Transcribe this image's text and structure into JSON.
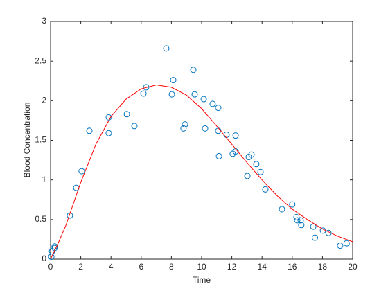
{
  "chart_data": {
    "type": "scatter",
    "xlabel": "Time",
    "ylabel": "Blood Concentration",
    "xlim": [
      0,
      20
    ],
    "ylim": [
      0,
      3
    ],
    "xticks": [
      0,
      2,
      4,
      6,
      8,
      10,
      12,
      14,
      16,
      18,
      20
    ],
    "yticks": [
      0,
      0.5,
      1,
      1.5,
      2,
      2.5,
      3
    ],
    "series": [
      {
        "type": "scatter",
        "color": "#0072bd",
        "x": [
          0.05,
          0.1,
          0.27,
          0.27,
          1.28,
          1.7,
          2.06,
          2.57,
          3.85,
          3.85,
          5.05,
          5.55,
          6.15,
          6.33,
          7.66,
          8.03,
          8.12,
          8.8,
          8.9,
          9.45,
          9.54,
          10.14,
          10.23,
          10.73,
          11.1,
          11.1,
          11.15,
          11.65,
          12.06,
          12.25,
          12.25,
          13.03,
          13.12,
          13.3,
          13.62,
          13.9,
          14.22,
          15.32,
          16.0,
          16.28,
          16.33,
          16.56,
          16.6,
          17.39,
          17.5,
          18.03,
          18.4,
          19.17,
          19.6
        ],
        "values": [
          0.03,
          0.1,
          0.16,
          0.14,
          0.55,
          0.9,
          1.11,
          1.62,
          1.59,
          1.79,
          1.83,
          1.68,
          2.09,
          2.17,
          2.66,
          2.08,
          2.26,
          1.65,
          1.7,
          2.39,
          2.08,
          2.02,
          1.65,
          1.96,
          1.91,
          1.62,
          1.3,
          1.57,
          1.33,
          1.56,
          1.36,
          1.05,
          1.29,
          1.32,
          1.2,
          1.1,
          0.88,
          0.63,
          0.69,
          0.53,
          0.49,
          0.49,
          0.43,
          0.41,
          0.27,
          0.36,
          0.33,
          0.17,
          0.2
        ]
      },
      {
        "type": "line",
        "color": "#ff0000",
        "x": [
          0,
          0.5,
          1,
          2,
          3,
          4,
          5,
          6,
          7,
          8,
          9,
          10,
          11,
          12,
          13,
          14,
          15,
          16,
          17,
          18,
          19,
          20
        ],
        "values": [
          0,
          0.2,
          0.42,
          0.97,
          1.45,
          1.8,
          2.02,
          2.15,
          2.2,
          2.17,
          2.07,
          1.9,
          1.68,
          1.45,
          1.22,
          1.0,
          0.8,
          0.63,
          0.5,
          0.38,
          0.29,
          0.22
        ]
      }
    ]
  }
}
